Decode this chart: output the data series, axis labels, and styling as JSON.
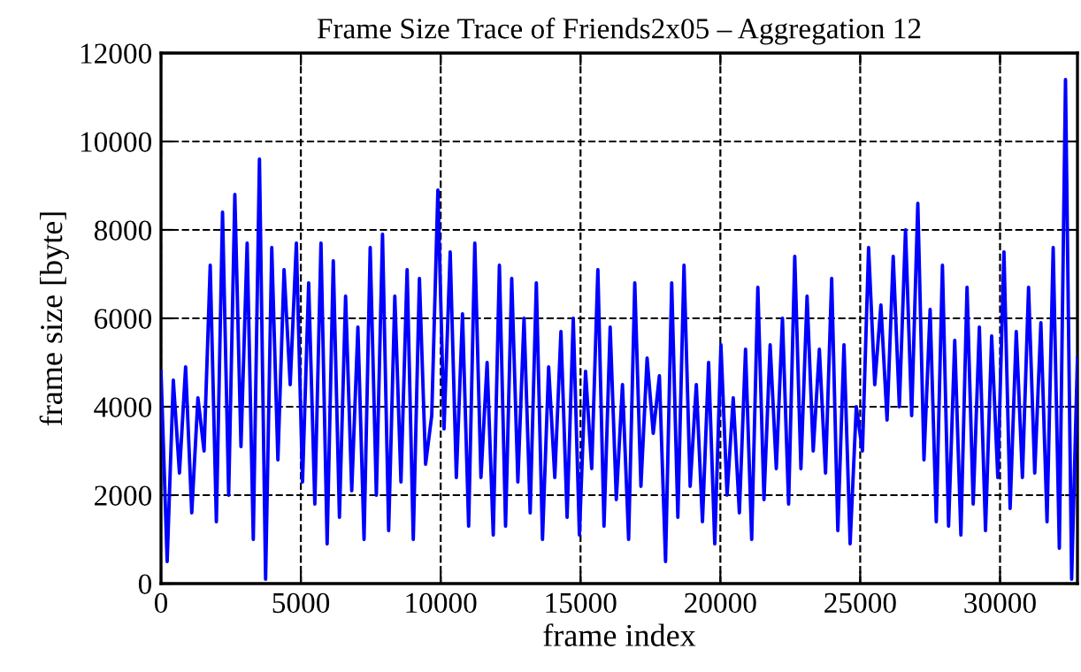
{
  "chart_data": {
    "type": "line",
    "title": "Frame Size Trace of Friends2x05 – Aggregation 12",
    "xlabel": "frame index",
    "ylabel": "frame size [byte]",
    "xlim": [
      0,
      32768
    ],
    "xticks": [
      0,
      5000,
      10000,
      15000,
      20000,
      25000,
      30000
    ],
    "ylim": [
      0,
      12000
    ],
    "yticks": [
      0,
      2000,
      4000,
      6000,
      8000,
      10000,
      12000
    ],
    "grid": true,
    "legend": false,
    "x": [
      0,
      220,
      440,
      660,
      880,
      1100,
      1320,
      1540,
      1760,
      1980,
      2200,
      2420,
      2640,
      2860,
      3080,
      3300,
      3520,
      3740,
      3960,
      4180,
      4400,
      4620,
      4840,
      5060,
      5280,
      5500,
      5720,
      5940,
      6160,
      6380,
      6600,
      6820,
      7040,
      7260,
      7480,
      7700,
      7920,
      8140,
      8360,
      8580,
      8800,
      9020,
      9240,
      9460,
      9680,
      9900,
      10120,
      10340,
      10560,
      10780,
      11000,
      11220,
      11440,
      11660,
      11880,
      12100,
      12320,
      12540,
      12760,
      12980,
      13200,
      13420,
      13640,
      13860,
      14080,
      14300,
      14520,
      14740,
      14960,
      15180,
      15400,
      15620,
      15840,
      16060,
      16280,
      16500,
      16720,
      16940,
      17160,
      17380,
      17600,
      17820,
      18040,
      18260,
      18480,
      18700,
      18920,
      19140,
      19360,
      19580,
      19800,
      20020,
      20240,
      20460,
      20680,
      20900,
      21120,
      21340,
      21560,
      21780,
      22000,
      22220,
      22440,
      22660,
      22880,
      23100,
      23320,
      23540,
      23760,
      23980,
      24200,
      24420,
      24640,
      24860,
      25080,
      25300,
      25520,
      25740,
      25960,
      26180,
      26400,
      26620,
      26840,
      27060,
      27280,
      27500,
      27720,
      27940,
      28160,
      28380,
      28600,
      28820,
      29040,
      29260,
      29480,
      29700,
      29920,
      30140,
      30360,
      30580,
      30800,
      31020,
      31240,
      31460,
      31680,
      31900,
      32120,
      32340,
      32560,
      32768
    ],
    "series": [
      {
        "color": "#0000ff",
        "values": [
          4800,
          500,
          4600,
          2500,
          4900,
          1600,
          4200,
          3000,
          7200,
          1400,
          8400,
          2000,
          8800,
          3100,
          7700,
          1000,
          9600,
          100,
          7600,
          2800,
          7100,
          4500,
          7700,
          2300,
          6800,
          1800,
          7700,
          900,
          7300,
          1500,
          6500,
          2100,
          5800,
          1000,
          7600,
          2000,
          7900,
          1200,
          6500,
          2300,
          7100,
          1000,
          6900,
          2700,
          3800,
          8900,
          3500,
          7500,
          2400,
          6100,
          1300,
          7700,
          2400,
          5000,
          1100,
          7200,
          1300,
          6900,
          2300,
          6000,
          1600,
          6800,
          1000,
          4900,
          2400,
          5700,
          1500,
          6000,
          1100,
          4800,
          2600,
          7100,
          1300,
          5800,
          1900,
          4500,
          1000,
          6800,
          2200,
          5100,
          3400,
          4700,
          500,
          6800,
          1500,
          7200,
          2200,
          4500,
          1400,
          5000,
          900,
          5400,
          2000,
          4200,
          1600,
          5300,
          1000,
          6700,
          1900,
          5400,
          2600,
          6000,
          1800,
          7400,
          2600,
          6500,
          3000,
          5300,
          2500,
          6900,
          1200,
          5400,
          900,
          4000,
          3000,
          7600,
          4500,
          6300,
          3700,
          7400,
          4000,
          8000,
          3800,
          8600,
          2800,
          6200,
          1400,
          7200,
          1300,
          5500,
          1100,
          6700,
          1800,
          5800,
          1200,
          5600,
          2400,
          7500,
          1700,
          5700,
          2400,
          6700,
          2500,
          5900,
          1400,
          7600,
          800,
          11400,
          100,
          5100
        ]
      }
    ]
  }
}
